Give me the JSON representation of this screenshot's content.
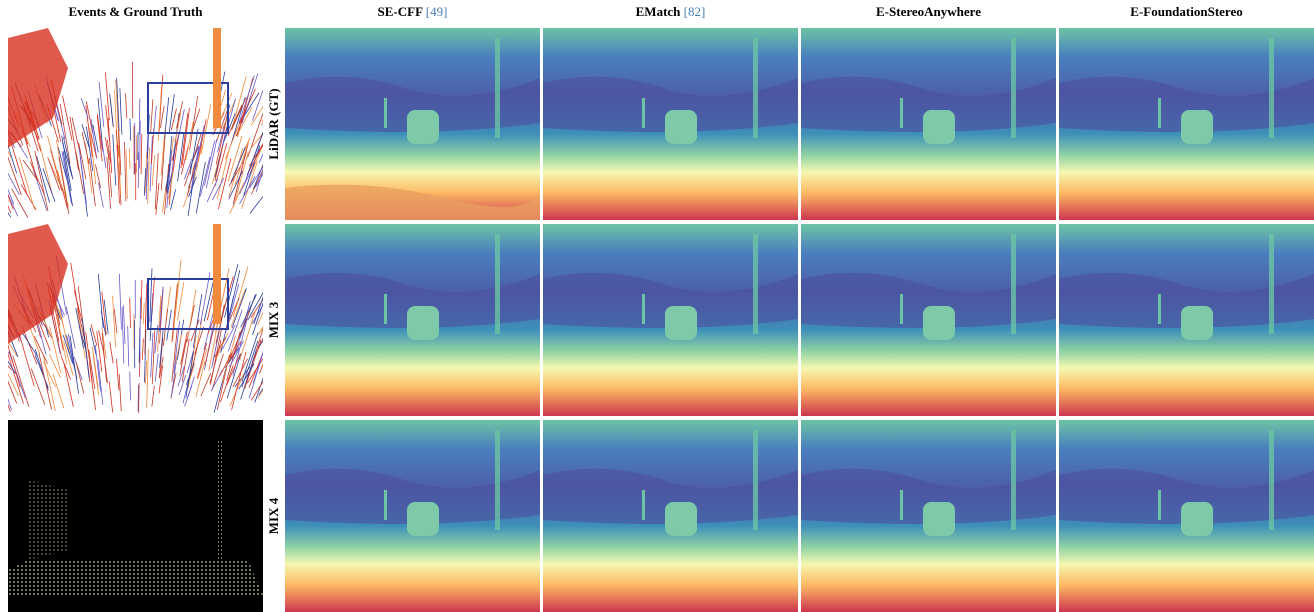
{
  "header": {
    "columns": [
      {
        "title": "Events & Ground Truth"
      },
      {
        "title": "SE-CFF",
        "cite": "[49]"
      },
      {
        "title": "EMatch",
        "cite": "[82]"
      },
      {
        "title": "E-StereoAnywhere"
      },
      {
        "title": "E-FoundationStereo"
      }
    ]
  },
  "rows": [
    {
      "label": "LiDAR (GT)"
    },
    {
      "label": "MIX 3"
    },
    {
      "label": "MIX 4"
    }
  ]
}
